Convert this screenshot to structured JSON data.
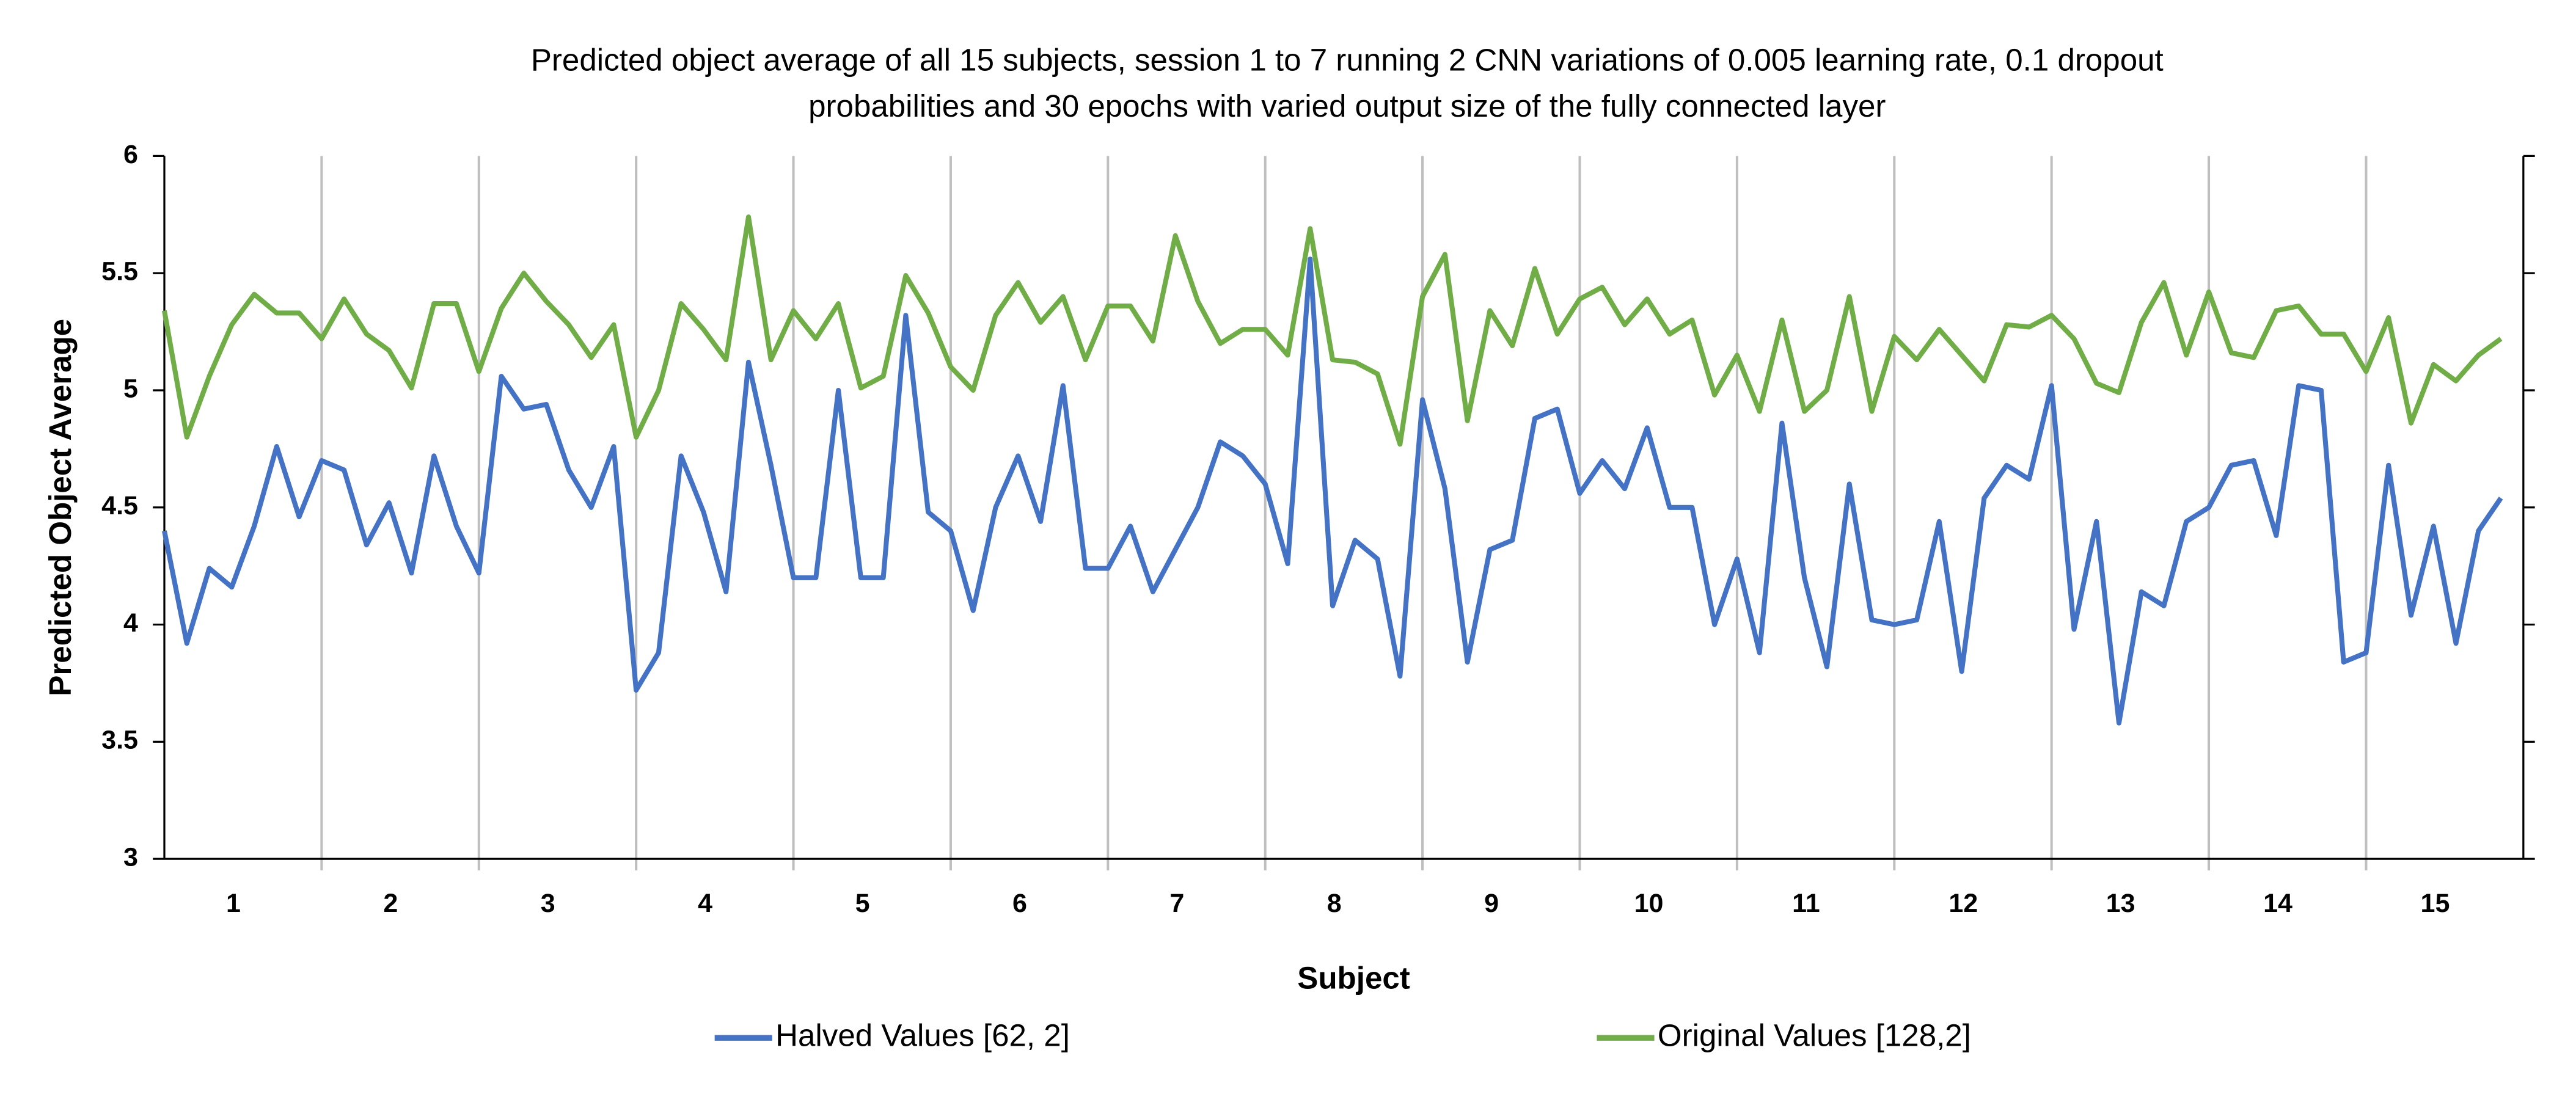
{
  "chart_data": {
    "type": "line",
    "title": [
      "Predicted object average of all 15 subjects, session 1 to 7 running 2 CNN variations of 0.005 learning rate, 0.1 dropout",
      "probabilities and 30 epochs with varied output size of the fully connected layer"
    ],
    "x_label": "Subject",
    "y_label": "Predicted Object Average",
    "categories": [
      null,
      null,
      null,
      "1",
      null,
      null,
      null,
      null,
      null,
      null,
      "2",
      null,
      null,
      null,
      null,
      null,
      null,
      "3",
      null,
      null,
      null,
      null,
      null,
      null,
      "4",
      null,
      null,
      null,
      null,
      null,
      null,
      "5",
      null,
      null,
      null,
      null,
      null,
      null,
      "6",
      null,
      null,
      null,
      null,
      null,
      null,
      "7",
      null,
      null,
      null,
      null,
      null,
      null,
      "8",
      null,
      null,
      null,
      null,
      null,
      null,
      "9",
      null,
      null,
      null,
      null,
      null,
      null,
      "10",
      null,
      null,
      null,
      null,
      null,
      null,
      "11",
      null,
      null,
      null,
      null,
      null,
      null,
      "12",
      null,
      null,
      null,
      null,
      null,
      null,
      "13",
      null,
      null,
      null,
      null,
      null,
      null,
      "14",
      null,
      null,
      null,
      null,
      null,
      null,
      "15",
      null,
      null,
      null
    ],
    "series": [
      {
        "name": "Halved Values [62, 2]",
        "color": "#4472c4",
        "values": [
          4.4,
          3.92,
          4.24,
          4.16,
          4.42,
          4.76,
          4.46,
          4.7,
          4.66,
          4.34,
          4.52,
          4.22,
          4.72,
          4.42,
          4.22,
          5.06,
          4.92,
          4.94,
          4.66,
          4.5,
          4.76,
          3.72,
          3.88,
          4.72,
          4.48,
          4.14,
          5.12,
          4.68,
          4.2,
          4.2,
          5.0,
          4.2,
          4.2,
          5.32,
          4.48,
          4.4,
          4.06,
          4.5,
          4.72,
          4.44,
          5.02,
          4.24,
          4.24,
          4.42,
          4.14,
          4.32,
          4.5,
          4.78,
          4.72,
          4.6,
          4.26,
          5.56,
          4.08,
          4.36,
          4.28,
          3.78,
          4.96,
          4.58,
          3.84,
          4.32,
          4.36,
          4.88,
          4.92,
          4.56,
          4.7,
          4.58,
          4.84,
          4.5,
          4.5,
          4.0,
          4.28,
          3.88,
          4.86,
          4.2,
          3.82,
          4.6,
          4.02,
          4.0,
          4.02,
          4.44,
          3.8,
          4.54,
          4.68,
          4.62,
          5.02,
          3.98,
          4.44,
          3.58,
          4.14,
          4.08,
          4.44,
          4.5,
          4.68,
          4.7,
          4.38,
          5.02,
          5.0,
          3.84,
          3.88,
          4.68,
          4.04,
          4.42,
          3.92,
          4.4,
          4.54
        ]
      },
      {
        "name": "Original Values [128,2]",
        "color": "#70ad47",
        "values": [
          5.34,
          4.8,
          5.06,
          5.28,
          5.41,
          5.33,
          5.33,
          5.22,
          5.39,
          5.24,
          5.17,
          5.01,
          5.37,
          5.37,
          5.08,
          5.35,
          5.5,
          5.38,
          5.28,
          5.14,
          5.28,
          4.8,
          5.0,
          5.37,
          5.26,
          5.13,
          5.74,
          5.13,
          5.34,
          5.22,
          5.37,
          5.01,
          5.06,
          5.49,
          5.33,
          5.1,
          5.0,
          5.32,
          5.46,
          5.29,
          5.4,
          5.13,
          5.36,
          5.36,
          5.21,
          5.66,
          5.38,
          5.2,
          5.26,
          5.26,
          5.15,
          5.69,
          5.13,
          5.12,
          5.07,
          4.77,
          5.4,
          5.58,
          4.87,
          5.34,
          5.19,
          5.52,
          5.24,
          5.39,
          5.44,
          5.28,
          5.39,
          5.24,
          5.3,
          4.98,
          5.15,
          4.91,
          5.3,
          4.91,
          5.0,
          5.4,
          4.91,
          5.23,
          5.13,
          5.26,
          5.15,
          5.04,
          5.28,
          5.27,
          5.32,
          5.22,
          5.03,
          4.99,
          5.29,
          5.46,
          5.15,
          5.42,
          5.16,
          5.14,
          5.34,
          5.36,
          5.24,
          5.24,
          5.08,
          5.31,
          4.86,
          5.11,
          5.04,
          5.15,
          5.22
        ]
      }
    ],
    "ylim": [
      3,
      6
    ],
    "yticks": [
      3,
      3.5,
      4,
      4.5,
      5,
      5.5,
      6
    ],
    "legend": "bottom"
  }
}
